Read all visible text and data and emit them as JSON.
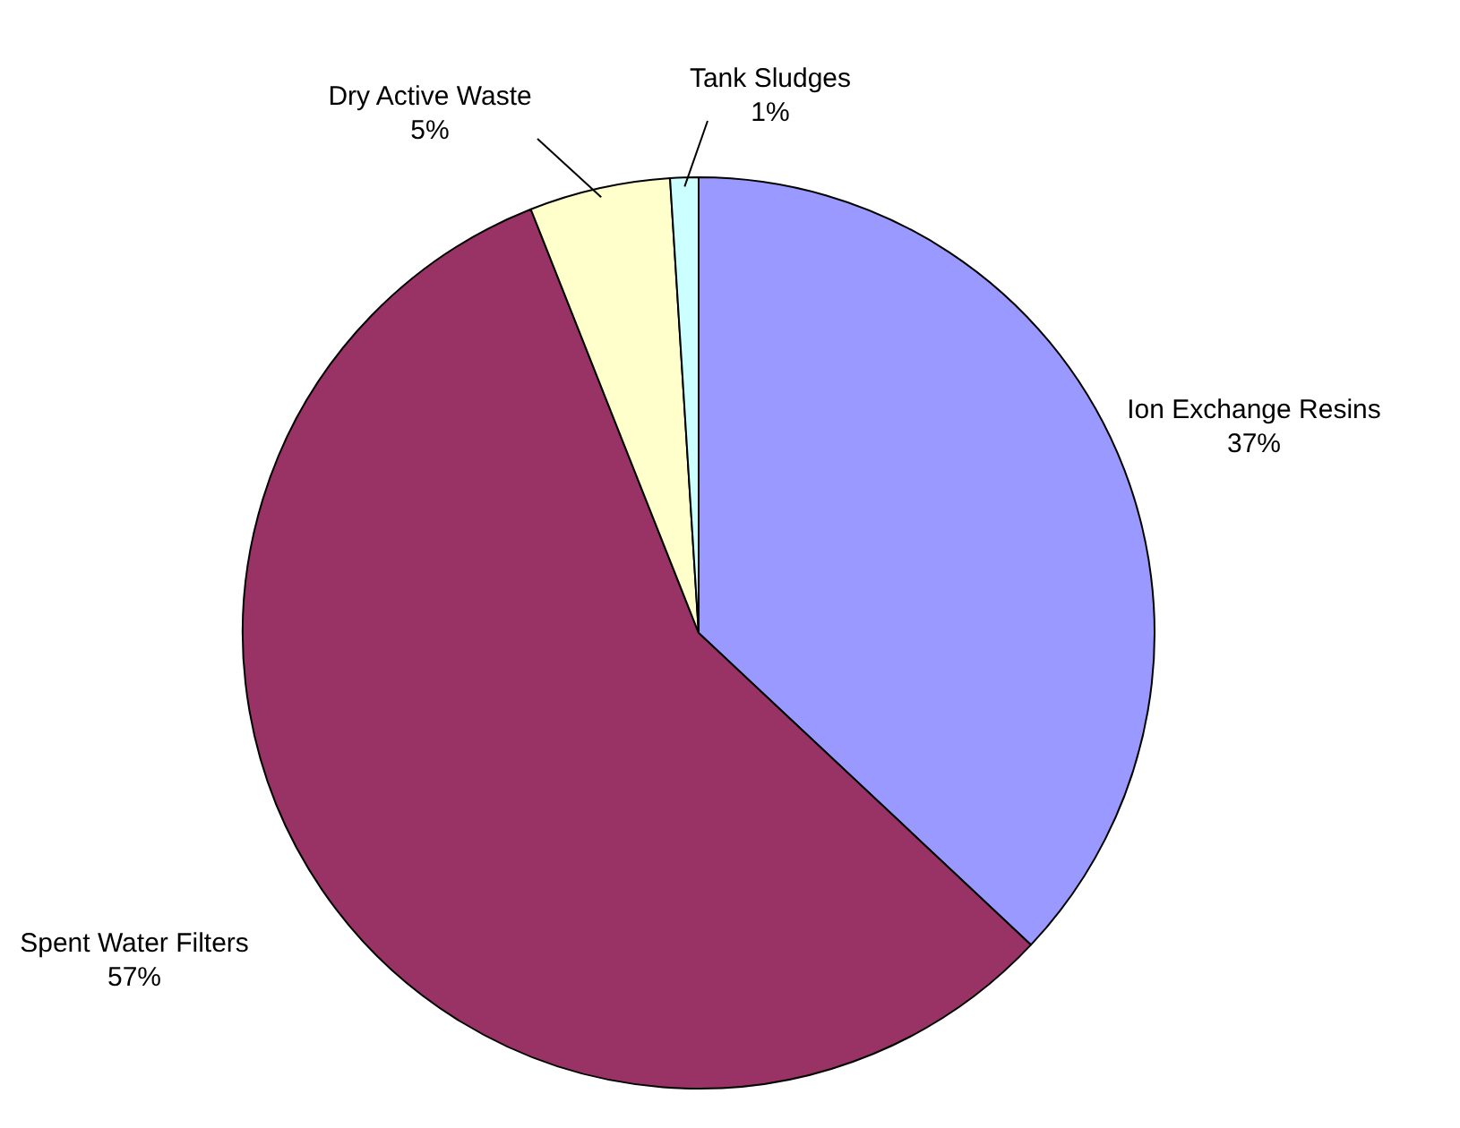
{
  "chart_data": {
    "type": "pie",
    "categories": [
      "Ion Exchange Resins",
      "Spent Water Filters",
      "Dry Active Waste",
      "Tank Sludges"
    ],
    "values": [
      37,
      57,
      5,
      1
    ],
    "colors": [
      "#9999ff",
      "#993366",
      "#ffffcc",
      "#ccffff"
    ],
    "value_labels": [
      "37%",
      "57%",
      "5%",
      "1%"
    ],
    "legend": false
  }
}
